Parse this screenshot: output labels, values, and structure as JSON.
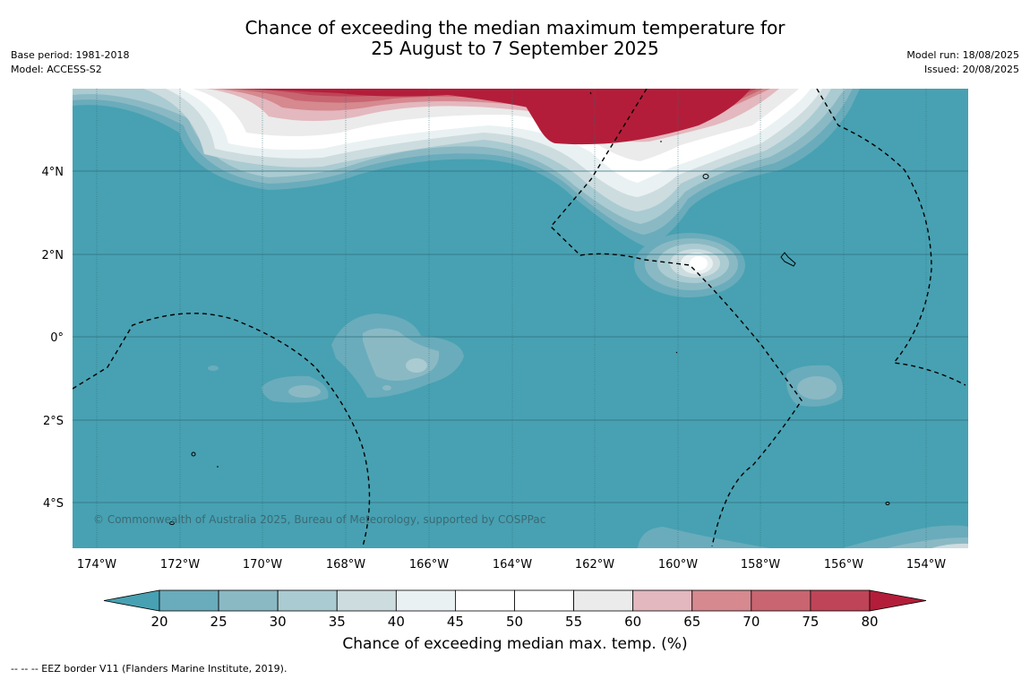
{
  "title_line1": "Chance of exceeding the median maximum temperature for",
  "title_line2": "25 August to 7 September 2025",
  "meta_left": {
    "base_period": "Base period: 1981-2018",
    "model": "Model: ACCESS-S2"
  },
  "meta_right": {
    "model_run": "Model run: 18/08/2025",
    "issued": "Issued: 20/08/2025"
  },
  "map": {
    "lon_labels": [
      "174°W",
      "172°W",
      "170°W",
      "168°W",
      "166°W",
      "164°W",
      "162°W",
      "160°W",
      "158°W",
      "156°W",
      "154°W"
    ],
    "lat_labels": [
      "4°N",
      "2°N",
      "0°",
      "2°S",
      "4°S"
    ],
    "copyright": "© Commonwealth of Australia 2025, Bureau of Meteorology, supported by COSPPac",
    "colors": {
      "ocean_low": "#47a1b2",
      "high": "#b31d3a"
    }
  },
  "colorbar": {
    "ticks": [
      "20",
      "25",
      "30",
      "35",
      "40",
      "45",
      "50",
      "55",
      "60",
      "65",
      "70",
      "75",
      "80"
    ],
    "colors": [
      "#47a1b2",
      "#6aacbb",
      "#8ab9c4",
      "#aacbd1",
      "#cddcdf",
      "#eaf1f2",
      "#ffffff",
      "#ffffff",
      "#ebebeb",
      "#e3b8be",
      "#d6898f",
      "#c96570",
      "#bf4457",
      "#b31d3a"
    ],
    "title": "Chance of exceeding median max. temp. (%)"
  },
  "footer": "--  --  -- EEZ border V11 (Flanders Marine Institute, 2019)."
}
